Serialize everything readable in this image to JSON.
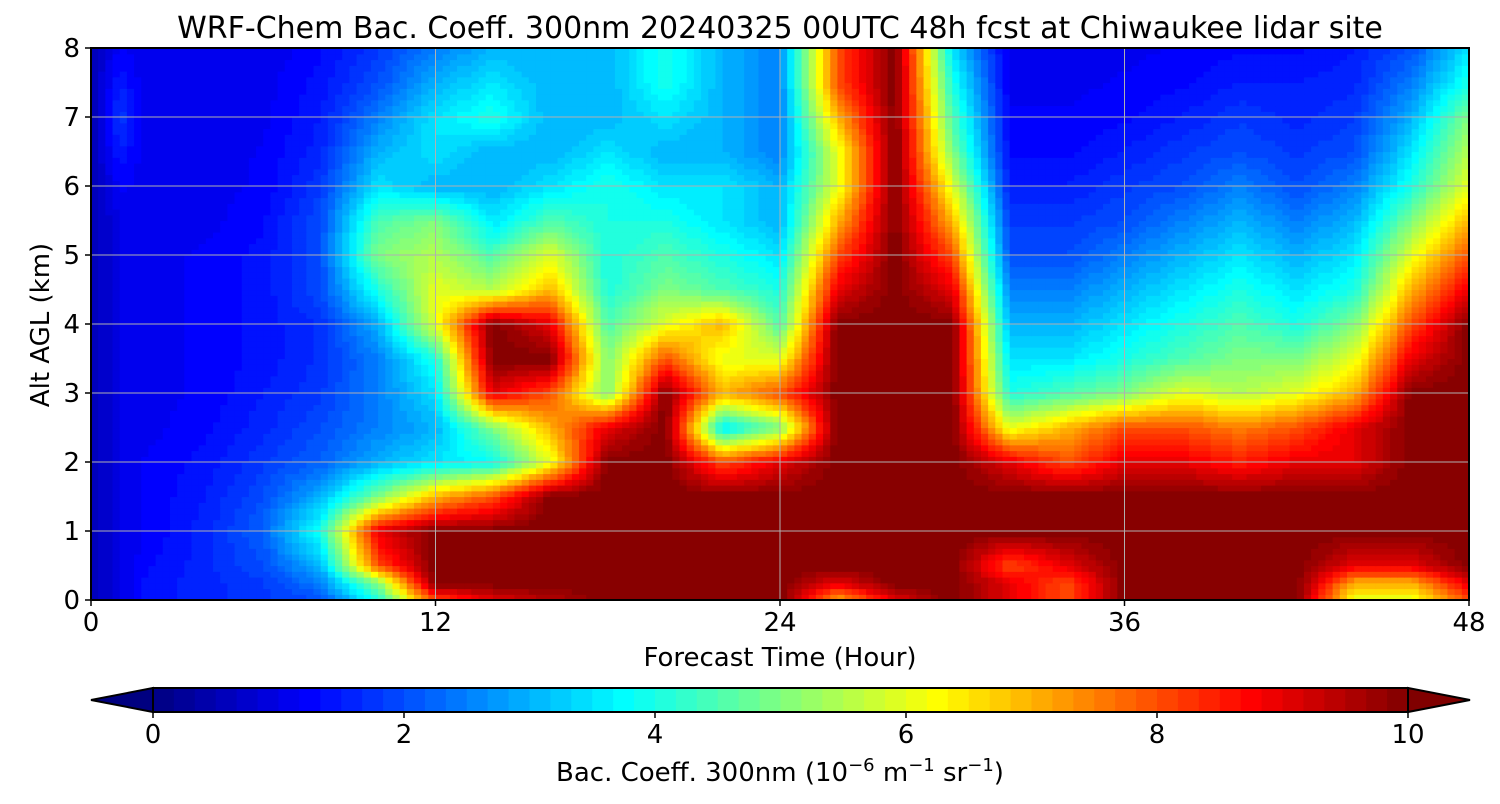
{
  "chart_data": {
    "type": "heatmap",
    "title": "WRF-Chem Bac. Coeff. 300nm  20240325 00UTC 48h fcst at Chiwaukee lidar site",
    "xlabel": "Forecast Time (Hour)",
    "ylabel": "Alt AGL (km)",
    "xlim": [
      0,
      48
    ],
    "ylim": [
      0,
      8
    ],
    "xticks": [
      "0",
      "12",
      "24",
      "36",
      "48"
    ],
    "yticks": [
      "0",
      "1",
      "2",
      "3",
      "4",
      "5",
      "6",
      "7",
      "8"
    ],
    "grid": true,
    "colormap": "jet",
    "colorbar": {
      "label_main": "Bac. Coeff. 300nm  (10",
      "label_exp1": "−6",
      "label_mid": " m",
      "label_exp2": "−1",
      "label_mid2": " sr",
      "label_exp3": "−1",
      "label_end": ")",
      "ticks": [
        "0",
        "2",
        "4",
        "6",
        "8",
        "10"
      ],
      "range": [
        0,
        10
      ],
      "extend": "both",
      "orientation": "horizontal"
    },
    "x": [
      0,
      1,
      2,
      4,
      6,
      8,
      10,
      12,
      14,
      16,
      18,
      20,
      22,
      24,
      26,
      28,
      30,
      32,
      34,
      36,
      38,
      40,
      42,
      44,
      46,
      48
    ],
    "y": [
      0,
      0.25,
      0.5,
      1,
      1.5,
      2,
      2.5,
      3,
      3.5,
      4,
      4.5,
      5,
      5.5,
      6,
      6.5,
      7,
      7.5,
      8
    ],
    "z": [
      [
        0.5,
        1,
        1.4,
        1.6,
        1.8,
        2,
        4,
        8,
        9,
        9.5,
        10,
        10,
        10,
        10,
        7,
        9,
        10,
        9,
        8,
        10,
        10,
        10,
        10,
        6,
        6,
        8
      ],
      [
        0.5,
        1,
        1.4,
        1.6,
        1.8,
        2.5,
        5,
        10,
        10,
        10,
        10,
        10,
        10,
        10,
        9,
        10,
        10,
        9,
        8,
        10,
        10,
        10,
        10,
        7,
        7,
        9
      ],
      [
        0.5,
        1,
        1.3,
        1.6,
        2,
        3,
        8,
        10,
        10,
        10,
        10,
        10,
        10,
        10,
        10,
        10,
        10,
        8,
        9,
        10,
        10,
        10,
        10,
        9,
        9,
        10
      ],
      [
        0.5,
        1,
        1.2,
        1.6,
        2.2,
        4,
        9,
        10,
        10,
        10,
        10,
        10,
        10,
        10,
        10,
        10,
        10,
        10,
        10,
        10,
        10,
        10,
        10,
        10,
        10,
        10
      ],
      [
        0.5,
        1,
        1.2,
        1.5,
        2,
        3,
        5,
        7,
        8,
        10,
        10,
        10,
        10,
        10,
        10,
        10,
        10,
        10,
        10,
        10,
        10,
        10,
        10,
        10,
        10,
        10
      ],
      [
        0.5,
        1,
        1.2,
        1.4,
        1.8,
        2.2,
        3,
        3.5,
        3.8,
        6,
        10,
        10,
        8,
        9,
        10,
        10,
        10,
        9,
        8,
        9,
        9,
        8.5,
        9,
        9,
        10,
        10
      ],
      [
        0.5,
        1,
        1.1,
        1.3,
        1.6,
        2,
        2.5,
        3,
        5,
        7,
        9,
        10,
        3.5,
        5,
        10,
        10,
        10,
        6,
        7,
        8,
        8,
        7.5,
        8,
        9,
        10,
        10
      ],
      [
        0.5,
        1,
        1.1,
        1.2,
        1.5,
        1.8,
        2.5,
        3.5,
        9,
        8,
        5,
        10,
        7,
        8,
        10,
        10,
        10,
        4,
        4.5,
        5,
        6,
        5.5,
        6,
        7,
        10,
        10
      ],
      [
        0.5,
        1,
        1.1,
        1.2,
        1.4,
        1.7,
        2.5,
        4,
        10,
        10,
        5,
        8,
        6,
        6,
        10,
        10,
        10,
        3.5,
        3.5,
        4,
        4.5,
        5,
        5,
        6,
        9,
        10
      ],
      [
        0.5,
        1,
        1.1,
        1.2,
        1.4,
        1.7,
        3,
        6,
        10,
        9,
        4.5,
        6,
        7,
        4.5,
        10,
        10,
        10,
        3,
        3,
        3.5,
        4,
        4.5,
        4,
        5,
        8,
        10
      ],
      [
        0.5,
        1,
        1.1,
        1.2,
        1.4,
        2,
        4,
        6,
        5.5,
        7,
        4,
        5,
        4.5,
        4,
        9,
        10,
        9,
        2.5,
        2.5,
        3,
        3.5,
        4,
        3.5,
        4,
        7,
        9
      ],
      [
        0.5,
        1,
        1.1,
        1.2,
        1.4,
        2,
        5,
        5.5,
        4.5,
        6,
        4,
        4.5,
        4,
        3.5,
        8,
        10,
        8,
        2,
        2,
        2.5,
        3,
        3.5,
        3,
        3.5,
        6,
        8
      ],
      [
        0.5,
        1,
        1.1,
        1.1,
        1.3,
        2,
        4.5,
        5,
        3.5,
        4.5,
        4,
        4,
        3.5,
        3,
        7,
        10,
        7,
        1.8,
        1.8,
        2,
        2.5,
        3,
        2.5,
        3,
        5,
        7
      ],
      [
        0.5,
        1.2,
        1.1,
        1.1,
        1.2,
        1.8,
        3.5,
        3,
        3,
        3.5,
        4,
        3.5,
        3.5,
        3,
        6,
        10,
        6,
        1.5,
        1.5,
        1.8,
        2,
        2.5,
        2,
        2.5,
        4,
        6
      ],
      [
        0.5,
        1.5,
        1,
        1,
        1.2,
        1.6,
        3,
        3.5,
        3,
        3,
        3.5,
        3,
        3,
        2.5,
        6,
        10,
        5,
        1.3,
        1.3,
        1.5,
        1.8,
        2,
        1.8,
        2,
        3.5,
        5.5
      ],
      [
        0.5,
        1.8,
        1,
        1,
        1.1,
        1.5,
        2.5,
        3.5,
        4,
        3,
        3,
        3.5,
        3,
        2.5,
        7,
        10,
        4.5,
        1.2,
        1.2,
        1.3,
        1.5,
        1.8,
        1.6,
        1.8,
        3,
        5
      ],
      [
        0.5,
        1.5,
        1,
        1,
        1.1,
        1.4,
        2,
        3,
        3.5,
        3,
        3,
        4,
        3,
        2.5,
        8,
        10,
        4,
        1.1,
        1.1,
        1.2,
        1.3,
        1.5,
        1.5,
        1.6,
        2.5,
        4
      ],
      [
        0.5,
        1.2,
        1,
        1,
        1,
        1.3,
        1.8,
        2.5,
        3,
        3,
        3,
        4,
        3,
        2.5,
        8,
        10,
        3.5,
        1,
        1,
        1.1,
        1.2,
        1.3,
        1.3,
        1.5,
        2,
        3.5
      ]
    ]
  }
}
